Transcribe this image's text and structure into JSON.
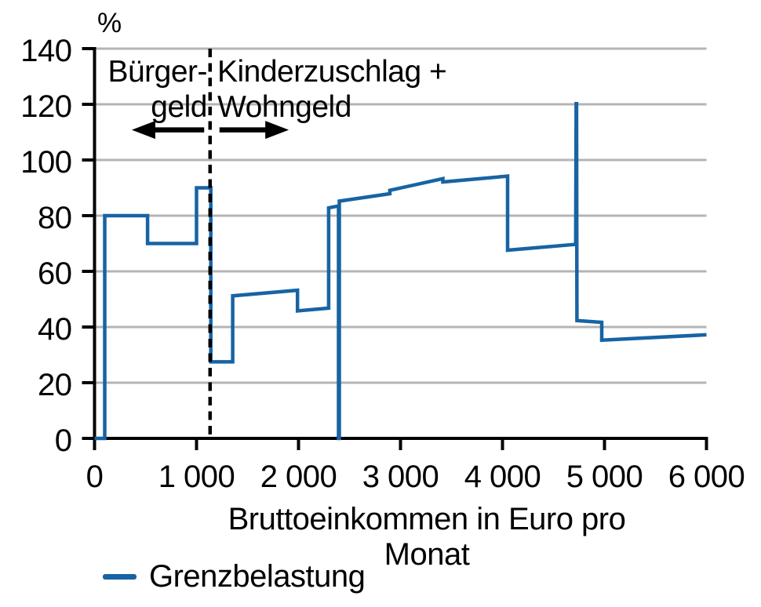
{
  "chart_data": {
    "type": "line",
    "unit_label": "%",
    "xlabel": "Bruttoeinkommen in Euro pro Monat",
    "ylabel": "",
    "xlim": [
      0,
      6000
    ],
    "ylim": [
      0,
      140
    ],
    "grid": "horizontal",
    "legend_position": "bottom-left",
    "x_ticks": [
      {
        "value": 0,
        "label": "0"
      },
      {
        "value": 1000,
        "label": "1 000"
      },
      {
        "value": 2000,
        "label": "2 000"
      },
      {
        "value": 3000,
        "label": "3 000"
      },
      {
        "value": 4000,
        "label": "4 000"
      },
      {
        "value": 5000,
        "label": "5 000"
      },
      {
        "value": 6000,
        "label": "6 000"
      }
    ],
    "y_ticks": [
      {
        "value": 0,
        "label": "0"
      },
      {
        "value": 20,
        "label": "20"
      },
      {
        "value": 40,
        "label": "40"
      },
      {
        "value": 60,
        "label": "60"
      },
      {
        "value": 80,
        "label": "80"
      },
      {
        "value": 100,
        "label": "100"
      },
      {
        "value": 120,
        "label": "120"
      },
      {
        "value": 140,
        "label": "140"
      }
    ],
    "series": [
      {
        "name": "Grenzbelastung",
        "color": "#1763a4",
        "points": [
          [
            0,
            0
          ],
          [
            100,
            0
          ],
          [
            100,
            80
          ],
          [
            520,
            80
          ],
          [
            520,
            70
          ],
          [
            1000,
            70
          ],
          [
            1000,
            90
          ],
          [
            1140,
            90
          ],
          [
            1140,
            27.5
          ],
          [
            1355,
            27.5
          ],
          [
            1355,
            51.2
          ],
          [
            1990,
            53.2
          ],
          [
            1990,
            45.8
          ],
          [
            2295,
            46.8
          ],
          [
            2295,
            82.8
          ],
          [
            2392,
            83.5
          ],
          [
            2392,
            0
          ],
          [
            2400,
            0
          ],
          [
            2400,
            85.2
          ],
          [
            2895,
            87.9
          ],
          [
            2895,
            89.1
          ],
          [
            3415,
            93.3
          ],
          [
            3415,
            92.1
          ],
          [
            4050,
            94.2
          ],
          [
            4050,
            67.6
          ],
          [
            4718,
            69.7
          ],
          [
            4722,
            120.2
          ],
          [
            4726,
            120.2
          ],
          [
            4730,
            42.3
          ],
          [
            4973,
            41.7
          ],
          [
            4973,
            35.3
          ],
          [
            6000,
            37.2
          ]
        ]
      }
    ],
    "annotations": {
      "divider_x": 1133,
      "left_region": {
        "lines": [
          "Bürger-",
          "geld"
        ]
      },
      "right_region": {
        "lines": [
          "Kinderzuschlag +",
          "Wohngeld"
        ]
      },
      "arrows": [
        {
          "from_x": 1075,
          "to_x": 365,
          "y_pct": 110.8
        },
        {
          "from_x": 1225,
          "to_x": 1905,
          "y_pct": 110.8
        }
      ]
    },
    "legend": [
      {
        "label": "Grenzbelastung",
        "color": "#1763a4"
      }
    ],
    "colors": {
      "line": "#1763a4",
      "grid": "#b4b4b4",
      "axis": "#000000",
      "divider": "#000000",
      "text": "#000000"
    }
  }
}
